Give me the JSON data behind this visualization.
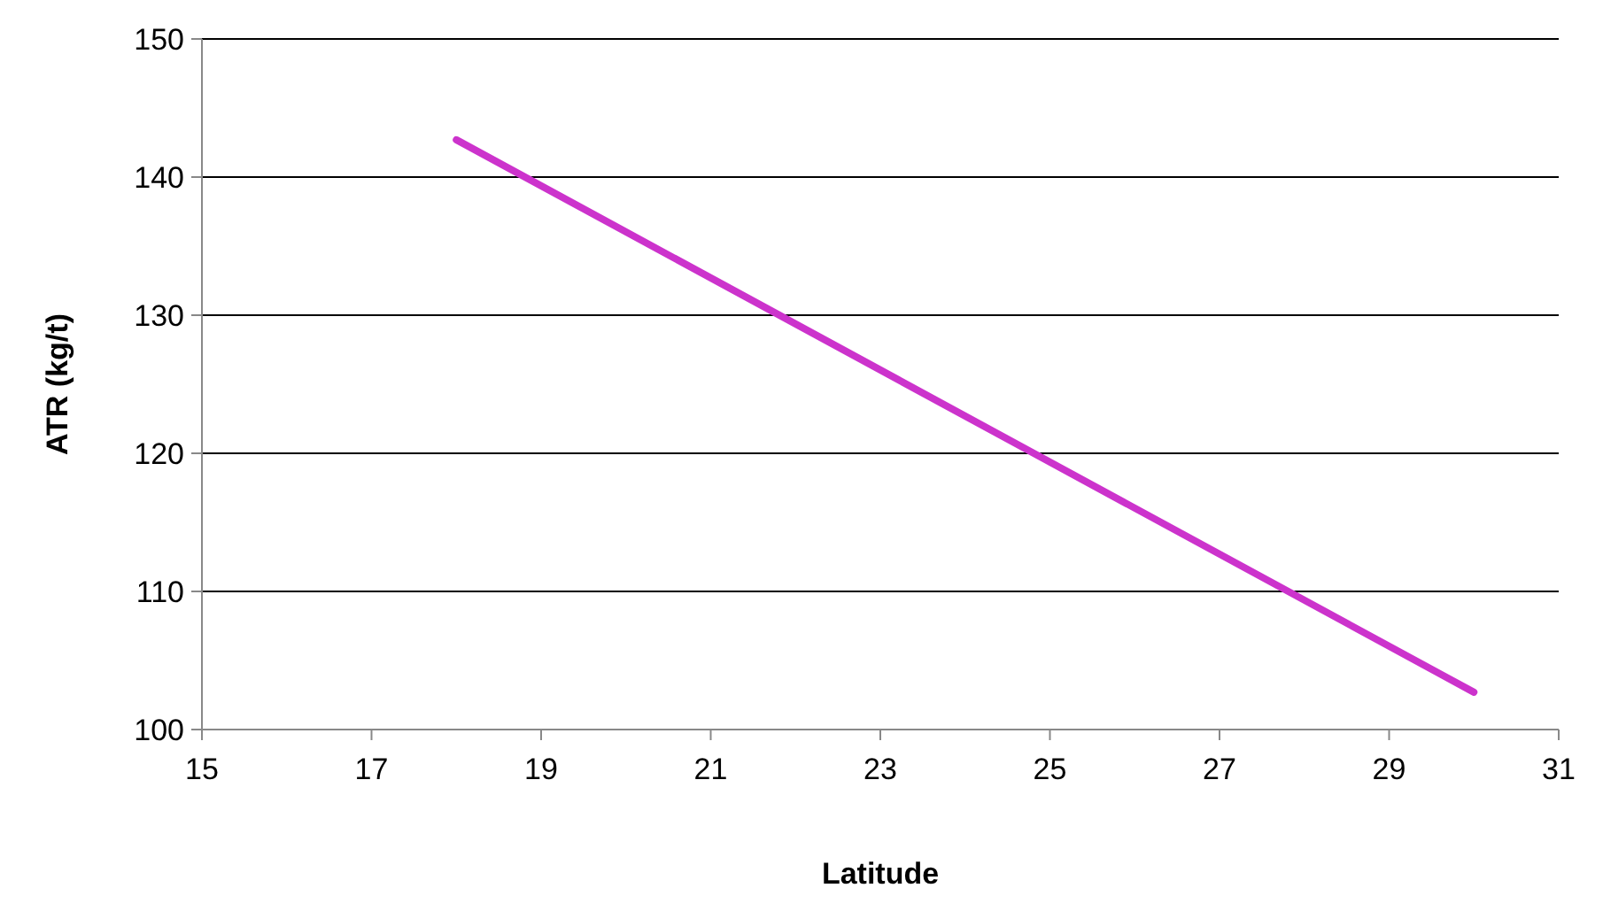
{
  "chart_data": {
    "type": "line",
    "xlabel": "Latitude",
    "ylabel": "ATR (kg/t)",
    "x": [
      18,
      30
    ],
    "series": [
      {
        "color": "#cc33cc",
        "values": [
          142.7,
          102.7
        ]
      }
    ],
    "xlim": [
      15,
      31
    ],
    "xticks": [
      15,
      17,
      19,
      21,
      23,
      25,
      27,
      29,
      31
    ],
    "ylim": [
      100,
      150
    ],
    "yticks": [
      100,
      110,
      120,
      130,
      140,
      150
    ],
    "grid": "y",
    "marker": "none",
    "line_style": "solid"
  }
}
